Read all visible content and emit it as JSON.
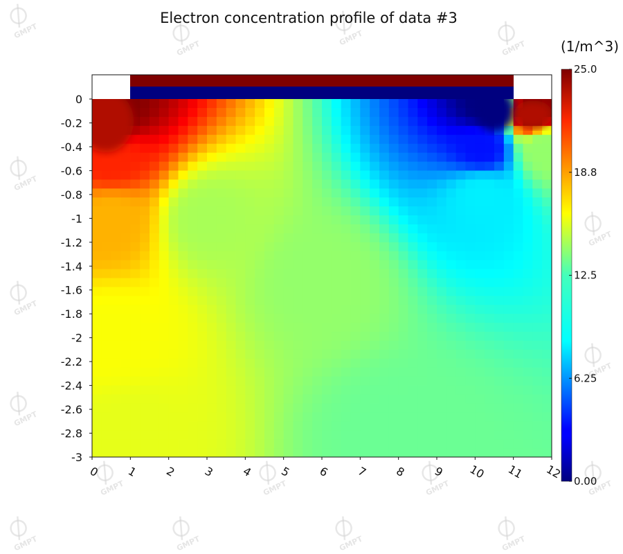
{
  "chart_data": {
    "type": "heatmap",
    "title": "Electron concentration profile of data #3",
    "x_ticks": [
      "0",
      "1",
      "2",
      "3",
      "4",
      "5",
      "6",
      "7",
      "8",
      "9",
      "10",
      "11",
      "12"
    ],
    "y_ticks": [
      "0",
      "-0.2",
      "-0.4",
      "-0.6",
      "-0.8",
      "-1",
      "-1.2",
      "-1.4",
      "-1.6",
      "-1.8",
      "-2",
      "-2.2",
      "-2.4",
      "-2.6",
      "-2.8",
      "-3"
    ],
    "xlim": [
      0,
      12
    ],
    "ylim": [
      -3,
      0.2
    ],
    "colorbar": {
      "unit": "(1/m^3)",
      "min": 0,
      "max": 25,
      "tick_labels": [
        "25.0",
        "18.8",
        "12.5",
        "6.25",
        "0.00"
      ],
      "tick_values": [
        25,
        18.75,
        12.5,
        6.25,
        0
      ],
      "colormap": "jet"
    },
    "regions": [
      {
        "x": [
          1,
          11
        ],
        "y": [
          0.1,
          0.2
        ],
        "value": 25
      },
      {
        "x": [
          1,
          11
        ],
        "y": [
          0,
          0.1
        ],
        "value": 0
      }
    ],
    "samples": [
      {
        "x": 0.5,
        "y": -0.1,
        "value": 25
      },
      {
        "x": 0.5,
        "y": -0.5,
        "value": 21
      },
      {
        "x": 0.5,
        "y": -1.0,
        "value": 17.5
      },
      {
        "x": 0.5,
        "y": -2.0,
        "value": 15.5
      },
      {
        "x": 1,
        "y": -2.8,
        "value": 15
      },
      {
        "x": 3,
        "y": -1.0,
        "value": 13.5
      },
      {
        "x": 6,
        "y": -1.5,
        "value": 13
      },
      {
        "x": 8,
        "y": -2.8,
        "value": 12
      },
      {
        "x": 10.2,
        "y": -0.05,
        "value": 0
      },
      {
        "x": 10.2,
        "y": -0.4,
        "value": 3.5
      },
      {
        "x": 10.2,
        "y": -0.8,
        "value": 9
      },
      {
        "x": 11.5,
        "y": -0.1,
        "value": 25
      },
      {
        "x": 11.8,
        "y": -0.4,
        "value": 13
      }
    ],
    "grid": false,
    "legend": "none"
  },
  "watermark": "GMPT"
}
